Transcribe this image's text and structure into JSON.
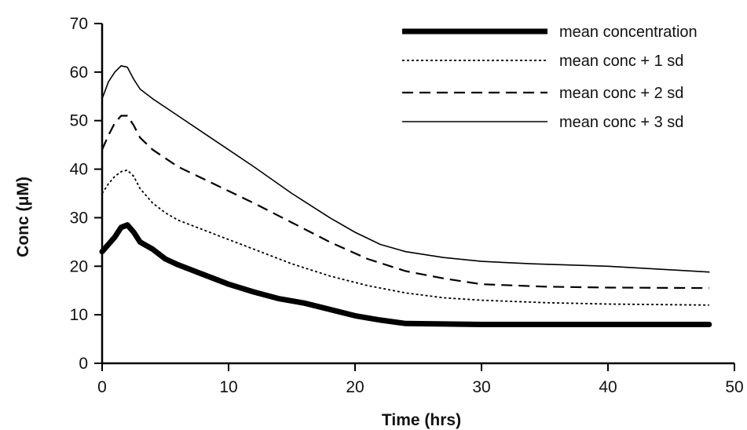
{
  "chart_data": {
    "type": "line",
    "title": "",
    "xlabel": "Time (hrs)",
    "ylabel": "Conc (μM)",
    "xlim": [
      0,
      50
    ],
    "ylim": [
      0,
      70
    ],
    "x_ticks": [
      "0",
      "10",
      "20",
      "30",
      "40",
      "50"
    ],
    "y_ticks": [
      "0",
      "10",
      "20",
      "30",
      "40",
      "50",
      "60",
      "70"
    ],
    "grid": false,
    "legend_position": "top-right",
    "series": [
      {
        "name": "mean concentration",
        "style": "thick-solid",
        "color": "#000000",
        "x": [
          0,
          1,
          1.5,
          2,
          2.5,
          3,
          4,
          5,
          6,
          8,
          10,
          12,
          14,
          16,
          18,
          20,
          22,
          24,
          30,
          40,
          48
        ],
        "y": [
          23,
          26,
          28,
          28.5,
          27,
          25,
          23.5,
          21.5,
          20.3,
          18.3,
          16.3,
          14.7,
          13.3,
          12.4,
          11.1,
          9.8,
          8.9,
          8.2,
          8,
          8,
          8
        ]
      },
      {
        "name": "mean conc + 1 sd",
        "style": "dotted",
        "color": "#000000",
        "x": [
          0,
          0.5,
          1,
          1.5,
          2,
          2.5,
          3,
          4,
          5,
          6,
          8,
          10,
          12,
          15,
          18,
          21,
          24,
          27,
          30,
          35,
          40,
          48
        ],
        "y": [
          35,
          37,
          38.5,
          39.5,
          39.8,
          38.5,
          36,
          33,
          31,
          29.5,
          27.5,
          25.5,
          23.5,
          20.5,
          18,
          16,
          14.5,
          13.5,
          13,
          12.5,
          12.2,
          12
        ]
      },
      {
        "name": "mean conc + 2 sd",
        "style": "dashed",
        "color": "#000000",
        "x": [
          0,
          0.5,
          1,
          1.5,
          2,
          2.5,
          3,
          4,
          6,
          8,
          10,
          12,
          15,
          18,
          21,
          24,
          27,
          30,
          35,
          40,
          48
        ],
        "y": [
          44,
          47,
          49.5,
          51,
          51,
          49,
          46.5,
          44,
          40.5,
          38,
          35.5,
          33,
          29,
          25,
          21.5,
          19,
          17.5,
          16.3,
          15.8,
          15.6,
          15.5
        ]
      },
      {
        "name": "mean conc + 3 sd",
        "style": "solid",
        "color": "#000000",
        "x": [
          0,
          0.5,
          1,
          1.5,
          2,
          2.5,
          3,
          4,
          6,
          8,
          10,
          12,
          15,
          18,
          20,
          22,
          24,
          27,
          30,
          34,
          40,
          48
        ],
        "y": [
          54.5,
          58,
          60,
          61.3,
          61,
          58.5,
          56.5,
          54.5,
          51,
          47.5,
          44,
          40.5,
          35,
          30,
          27,
          24.5,
          23,
          21.8,
          21,
          20.5,
          20,
          18.8
        ]
      }
    ]
  }
}
